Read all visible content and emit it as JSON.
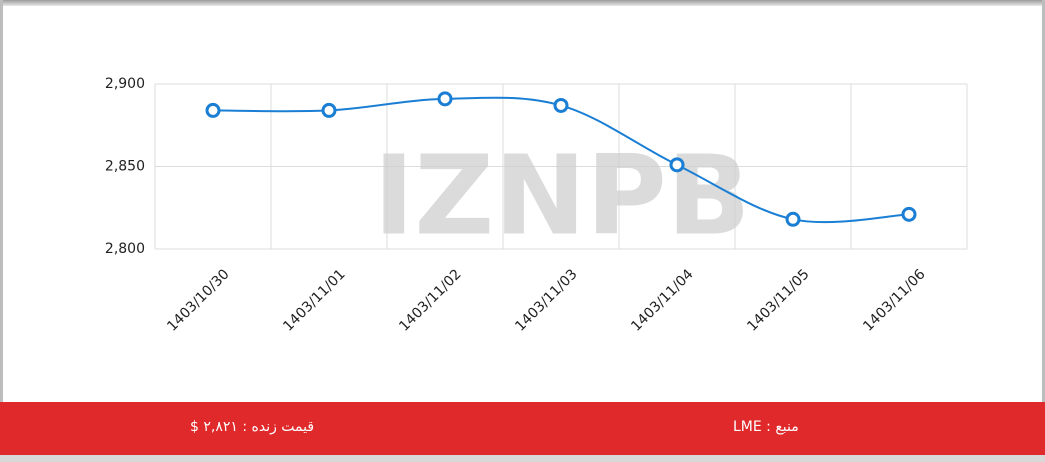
{
  "chart_data": {
    "type": "line",
    "watermark": "IZNPB",
    "categories": [
      "1403/10/30",
      "1403/11/01",
      "1403/11/02",
      "1403/11/03",
      "1403/11/04",
      "1403/11/05",
      "1403/11/06"
    ],
    "series": [
      {
        "color": "#1a7fd4",
        "values": [
          2884,
          2884,
          2891,
          2887,
          2851,
          2818,
          2821
        ]
      }
    ],
    "ylim": [
      2800,
      2900
    ],
    "yticks": [
      {
        "value": 2800,
        "label": "2,800"
      },
      {
        "value": 2850,
        "label": "2,850"
      },
      {
        "value": 2900,
        "label": "2,900"
      }
    ],
    "grid": true
  },
  "footer": {
    "live_price": "قیمت زنده : ۲,۸۲۱ $",
    "source": "منبع : LME"
  }
}
